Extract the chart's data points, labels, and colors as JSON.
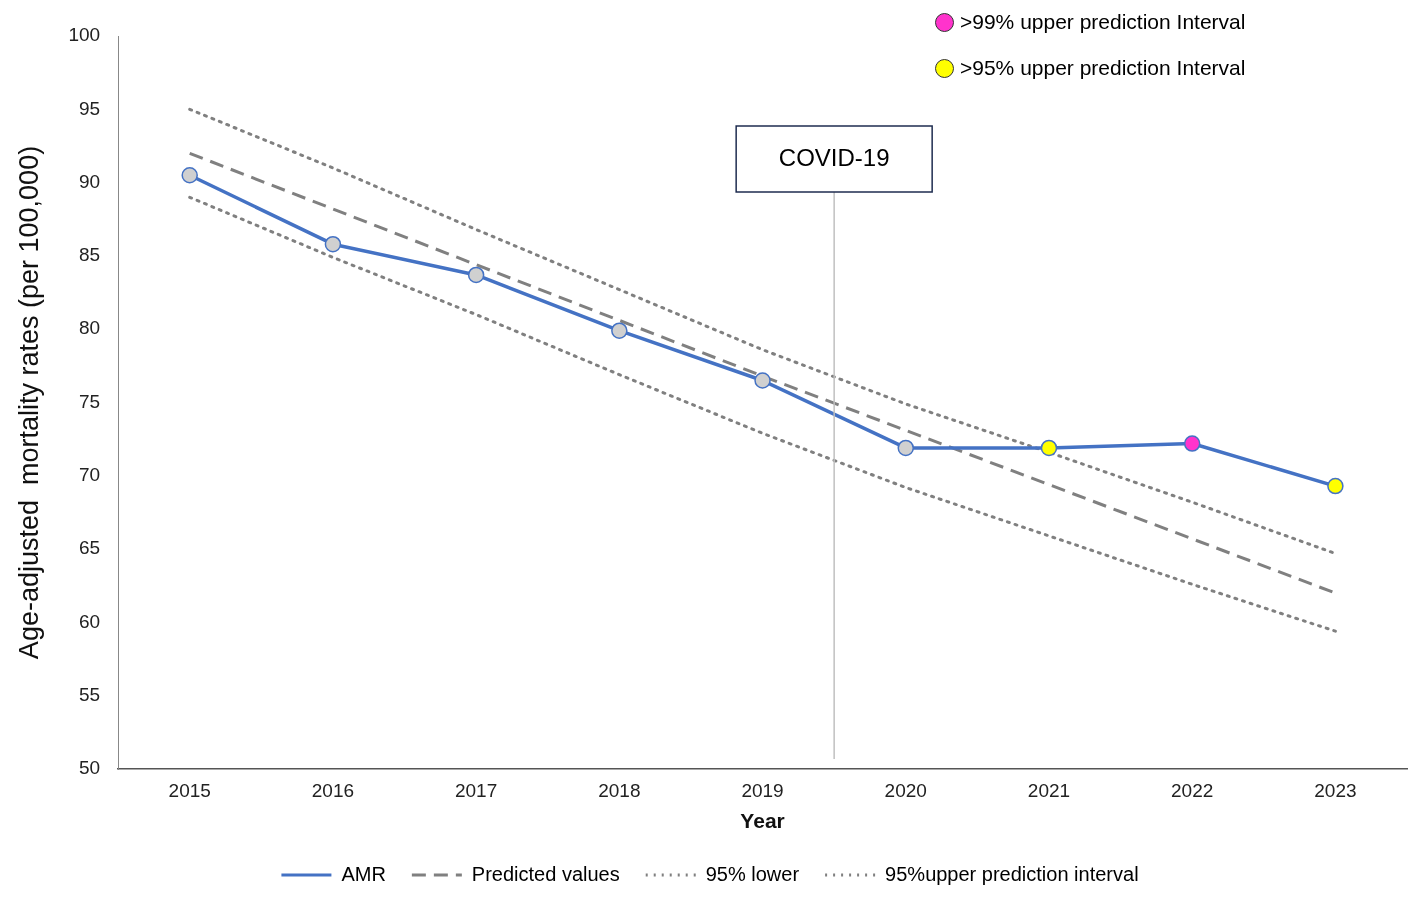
{
  "chart_data": {
    "type": "line",
    "xlabel": "Year",
    "ylabel": "Age-adjusted  mortality rates (per 100,000)",
    "x": [
      2015,
      2016,
      2017,
      2018,
      2019,
      2020,
      2021,
      2022,
      2023
    ],
    "xlim": [
      2014.5,
      2023.5
    ],
    "xticks": [
      2015,
      2016,
      2017,
      2018,
      2019,
      2020,
      2021,
      2022,
      2023
    ],
    "ylim": [
      50,
      100
    ],
    "yticks": [
      50,
      55,
      60,
      65,
      70,
      75,
      80,
      85,
      90,
      95,
      100
    ],
    "grid": false,
    "legend": "bottom",
    "series": [
      {
        "name": "AMR",
        "color": "#4472c4",
        "marker": "circle",
        "line_style": "solid",
        "colors": [
          "#d0d0d0",
          "#d0d0d0",
          "#d0d0d0",
          "#d0d0d0",
          "#d0d0d0",
          "#d0d0d0",
          "#ffff00",
          "#ff33cc",
          "#ffff00"
        ],
        "values": [
          90.5,
          85.8,
          83.7,
          79.9,
          76.5,
          71.9,
          71.9,
          72.2,
          69.3
        ]
      },
      {
        "name": "Predicted values",
        "color": "#808080",
        "marker": "none",
        "line_style": "dashed",
        "values": [
          92.0,
          88.2,
          84.4,
          80.6,
          76.8,
          73.1,
          69.4,
          65.7,
          62.0
        ]
      },
      {
        "name": "95% lower",
        "color": "#808080",
        "marker": "none",
        "line_style": "dotted",
        "values": [
          89.0,
          84.9,
          81.0,
          76.9,
          72.9,
          69.2,
          65.9,
          62.6,
          59.4
        ]
      },
      {
        "name": "95%upper prediction interval",
        "color": "#808080",
        "marker": "none",
        "line_style": "dotted",
        "values": [
          95.0,
          91.0,
          86.8,
          82.7,
          78.6,
          74.9,
          71.6,
          68.2,
          64.7
        ]
      }
    ],
    "ref_lines": [
      {
        "axis": "x",
        "value": 2019.5,
        "label": "COVID-19",
        "color": "#c0c0c0"
      }
    ],
    "annotations": [
      ">99% upper prediction Interval",
      ">95% upper prediction Interval"
    ]
  }
}
